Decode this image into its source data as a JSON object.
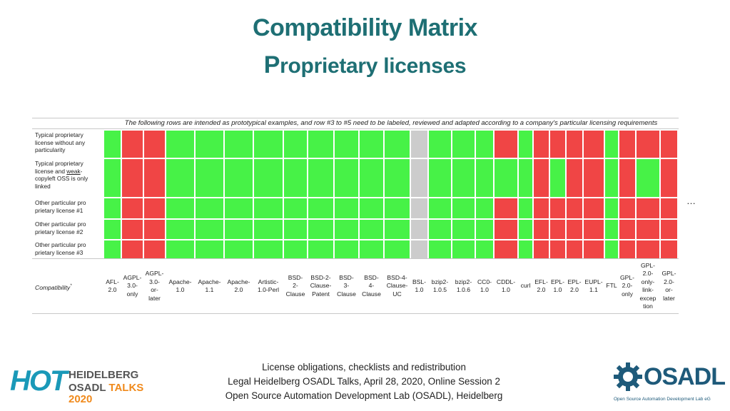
{
  "slide": {
    "title_line1": "Compatibility Matrix",
    "title_line2_first": "P",
    "title_line2_rest": "roprietary licenses",
    "ellipsis": "…"
  },
  "matrix": {
    "note": "The following rows are intended as prototypical examples, and row #3 to #5 need to be labeled, reviewed and adapted according to a company's particular licensing requirements",
    "compatibility_label": "Compatibility",
    "compatibility_marker": "*",
    "colors": {
      "compatible": "#47f247",
      "incompatible": "#f04545",
      "unknown": "#cccccc"
    },
    "columns": [
      "AFL-\n2.0",
      "AGPL-\n3.0-\nonly",
      "AGPL-\n3.0-\nor-\nlater",
      "Apache-\n1.0",
      "Apache-\n1.1",
      "Apache-\n2.0",
      "Artistic-\n1.0-Perl",
      "BSD-\n2-\nClause",
      "BSD-2-\nClause-\nPatent",
      "BSD-\n3-\nClause",
      "BSD-\n4-\nClause",
      "BSD-4-\nClause-\nUC",
      "BSL-\n1.0",
      "bzip2-\n1.0.5",
      "bzip2-\n1.0.6",
      "CC0-\n1.0",
      "CDDL-\n1.0",
      "curl",
      "EFL-\n2.0",
      "EPL-\n1.0",
      "EPL-\n2.0",
      "EUPL-\n1.1",
      "FTL",
      "GPL-\n2.0-\nonly",
      "GPL-\n2.0-\nonly-\nlink-\nexcep\ntion",
      "GPL-\n2.0-\nor-\nlater"
    ],
    "rows": [
      {
        "label": "Typical proprietary license without any particularity",
        "cells": "GRRGGGGGGGGGUGGGRGRRRRGRRR"
      },
      {
        "label_parts": [
          "Typical proprietary license and ",
          "weak",
          "-copyleft OSS is only linked"
        ],
        "cells": "GRRGGGGGGGGGUGGGGGRGRRGRGR"
      },
      {
        "label": "Other particular pro prietary license #1",
        "cells": "GRRGGGGGGGGGUGGGRGRRRRGRRR"
      },
      {
        "label": "Other particular pro prietary license #2",
        "cells": "GRRGGGGGGGGGUGGGRGRRRRGRRR"
      },
      {
        "label": "Other particular pro prietary license #3",
        "cells": "GRRGGGGGGGGGUGGGRGRRRRGRRR"
      }
    ]
  },
  "footer": {
    "line1": "License obligations, checklists and redistribution",
    "line2": "Legal Heidelberg OSADL Talks, April 28, 2020, Online Session 2",
    "line3": "Open Source Automation Development Lab (OSADL), Heidelberg"
  },
  "logos": {
    "hot": {
      "big": "HOT",
      "line1": "HEIDELBERG",
      "line2a": "OSADL ",
      "line2b": "TALKS 2020"
    },
    "osadl": {
      "word": "OSADL",
      "sub": "Open Source Automation Development Lab eG"
    }
  }
}
